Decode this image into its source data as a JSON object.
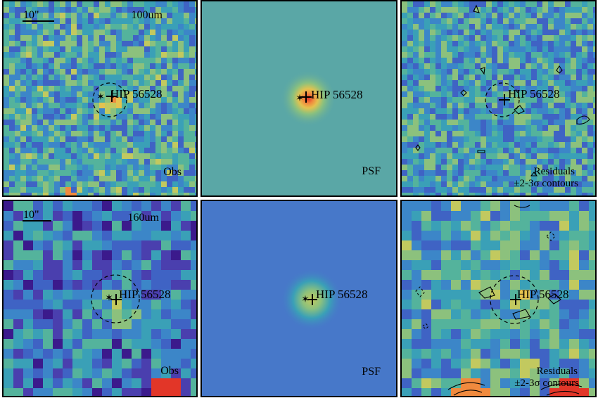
{
  "target": "HIP 56528",
  "scale_bar": "10\"",
  "colors": {
    "frame": "#000000",
    "palette": [
      "#3b1a8c",
      "#4a3fae",
      "#3f63c4",
      "#3c86c8",
      "#3aa0b7",
      "#54b39c",
      "#8cc17d",
      "#c2c95f",
      "#e4c24f",
      "#f08a3e",
      "#e23628"
    ],
    "psf100_bg": "#5aa7a6",
    "psf160_bg": "#4778c9"
  },
  "rows": [
    {
      "band": "100um",
      "panels": [
        {
          "kind": "obs",
          "caption": "Obs"
        },
        {
          "kind": "psf",
          "caption": "PSF"
        },
        {
          "kind": "residuals",
          "caption_line1": "Residuals",
          "caption_line2": "±2-3σ contours"
        }
      ]
    },
    {
      "band": "160um",
      "panels": [
        {
          "kind": "obs",
          "caption": "Obs"
        },
        {
          "kind": "psf",
          "caption": "PSF"
        },
        {
          "kind": "residuals",
          "caption_line1": "Residuals",
          "caption_line2": "±2-3σ contours"
        }
      ]
    }
  ]
}
